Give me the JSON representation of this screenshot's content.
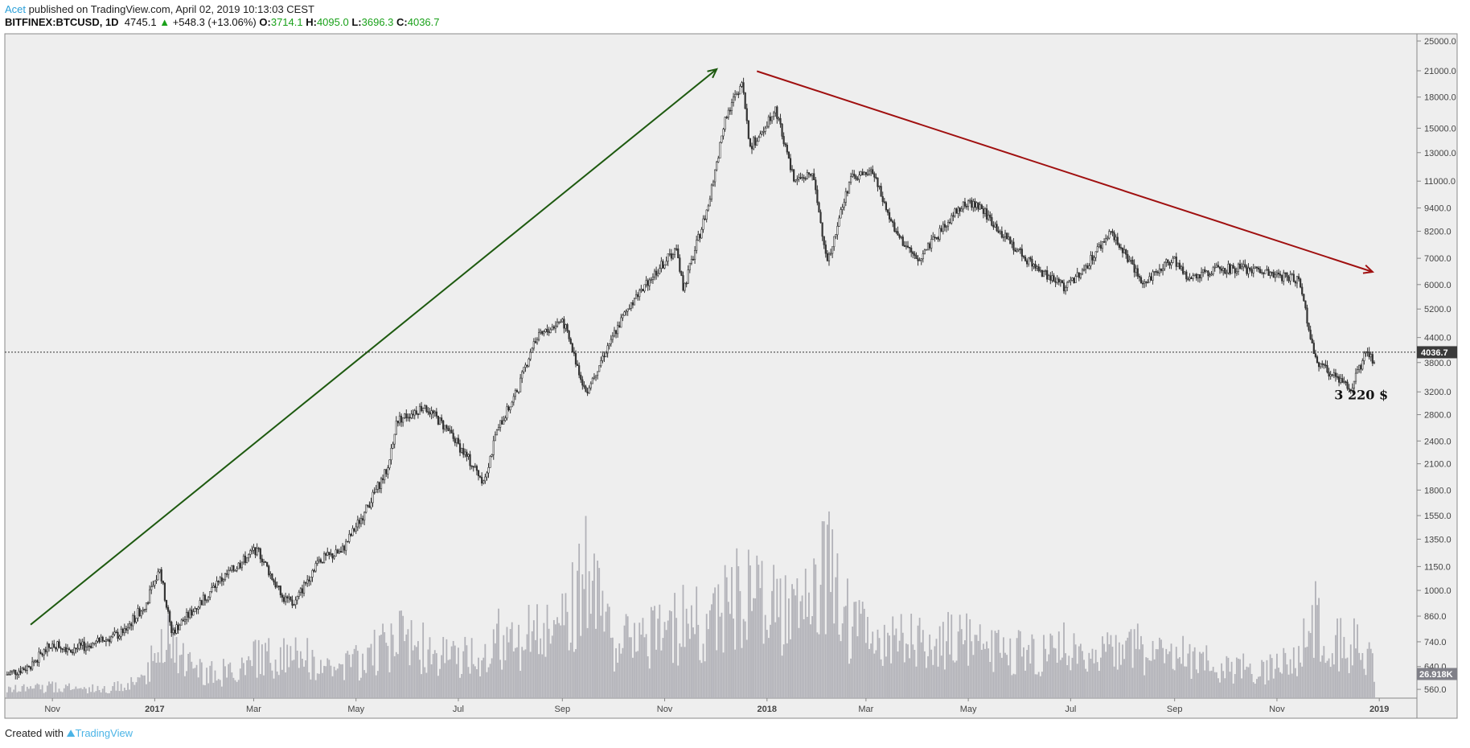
{
  "header": {
    "author": "Acet",
    "published": "published on TradingView.com, April 02, 2019 10:13:03 CEST",
    "symbol": "BITFINEX:BTCUSD, 1D",
    "last": "4745.1",
    "change": "+548.3 (+13.06%)",
    "o_label": "O:",
    "o": "3714.1",
    "h_label": "H:",
    "h": "4095.0",
    "l_label": "L:",
    "l": "3696.3",
    "c_label": "C:",
    "c": "4036.7"
  },
  "footer": {
    "created_with": "Created with",
    "brand": "TradingView"
  },
  "chart_data": {
    "type": "candlestick",
    "scale": "log",
    "grid": false,
    "ylim": [
      540,
      26000
    ],
    "y_ticks": [
      25000,
      21000,
      18000,
      15000,
      13000,
      11000,
      9400,
      8200,
      7000,
      6000,
      5200,
      4400,
      3800,
      3200,
      2800,
      2400,
      2100,
      1800,
      1550,
      1350,
      1150,
      1000,
      860,
      740,
      640,
      560
    ],
    "x_ticks": [
      {
        "date": "2016-11-01",
        "label": "Nov"
      },
      {
        "date": "2017-01-01",
        "label": "2017"
      },
      {
        "date": "2017-03-01",
        "label": "Mar"
      },
      {
        "date": "2017-05-01",
        "label": "May"
      },
      {
        "date": "2017-07-01",
        "label": "Jul"
      },
      {
        "date": "2017-09-01",
        "label": "Sep"
      },
      {
        "date": "2017-11-01",
        "label": "Nov"
      },
      {
        "date": "2018-01-01",
        "label": "2018"
      },
      {
        "date": "2018-03-01",
        "label": "Mar"
      },
      {
        "date": "2018-05-01",
        "label": "May"
      },
      {
        "date": "2018-07-01",
        "label": "Jul"
      },
      {
        "date": "2018-09-01",
        "label": "Sep"
      },
      {
        "date": "2018-11-01",
        "label": "Nov"
      },
      {
        "date": "2019-01-01",
        "label": "2019"
      }
    ],
    "last_price_label": "4036.7",
    "last_price": 4036.7,
    "last_volume_label": "26.918K",
    "last_volume_k": 26.918,
    "price_path": [
      [
        "2016-10-04",
        610
      ],
      [
        "2016-10-18",
        640
      ],
      [
        "2016-11-01",
        730
      ],
      [
        "2016-11-15",
        710
      ],
      [
        "2016-11-29",
        740
      ],
      [
        "2016-12-13",
        780
      ],
      [
        "2016-12-27",
        930
      ],
      [
        "2017-01-04",
        1130
      ],
      [
        "2017-01-11",
        780
      ],
      [
        "2017-01-25",
        900
      ],
      [
        "2017-02-08",
        1050
      ],
      [
        "2017-02-22",
        1180
      ],
      [
        "2017-03-03",
        1280
      ],
      [
        "2017-03-18",
        960
      ],
      [
        "2017-03-25",
        920
      ],
      [
        "2017-04-08",
        1190
      ],
      [
        "2017-04-22",
        1250
      ],
      [
        "2017-05-06",
        1580
      ],
      [
        "2017-05-20",
        2050
      ],
      [
        "2017-05-25",
        2700
      ],
      [
        "2017-06-11",
        2950
      ],
      [
        "2017-06-25",
        2550
      ],
      [
        "2017-07-16",
        1900
      ],
      [
        "2017-07-25",
        2600
      ],
      [
        "2017-08-05",
        3200
      ],
      [
        "2017-08-15",
        4300
      ],
      [
        "2017-09-01",
        4900
      ],
      [
        "2017-09-15",
        3200
      ],
      [
        "2017-09-30",
        4350
      ],
      [
        "2017-10-12",
        5400
      ],
      [
        "2017-10-20",
        6000
      ],
      [
        "2017-11-08",
        7400
      ],
      [
        "2017-11-12",
        5800
      ],
      [
        "2017-11-28",
        9900
      ],
      [
        "2017-12-07",
        16000
      ],
      [
        "2017-12-17",
        19600
      ],
      [
        "2017-12-22",
        13500
      ],
      [
        "2017-12-28",
        14500
      ],
      [
        "2018-01-06",
        17000
      ],
      [
        "2018-01-17",
        11000
      ],
      [
        "2018-01-28",
        11500
      ],
      [
        "2018-02-06",
        6900
      ],
      [
        "2018-02-20",
        11300
      ],
      [
        "2018-03-05",
        11500
      ],
      [
        "2018-03-18",
        8200
      ],
      [
        "2018-04-01",
        6900
      ],
      [
        "2018-04-12",
        7900
      ],
      [
        "2018-04-25",
        9400
      ],
      [
        "2018-05-06",
        9700
      ],
      [
        "2018-05-20",
        8200
      ],
      [
        "2018-06-12",
        6500
      ],
      [
        "2018-06-28",
        5900
      ],
      [
        "2018-07-10",
        6700
      ],
      [
        "2018-07-25",
        8200
      ],
      [
        "2018-08-10",
        6300
      ],
      [
        "2018-08-14",
        6100
      ],
      [
        "2018-08-31",
        7000
      ],
      [
        "2018-09-08",
        6200
      ],
      [
        "2018-09-20",
        6500
      ],
      [
        "2018-10-10",
        6600
      ],
      [
        "2018-10-31",
        6350
      ],
      [
        "2018-11-14",
        6200
      ],
      [
        "2018-11-20",
        4600
      ],
      [
        "2018-11-25",
        3800
      ],
      [
        "2018-12-06",
        3500
      ],
      [
        "2018-12-15",
        3220
      ],
      [
        "2018-12-24",
        4050
      ],
      [
        "2018-12-29",
        3800
      ]
    ],
    "volume_k": [
      8,
      10,
      12,
      10,
      9,
      12,
      25,
      70,
      55,
      30,
      25,
      30,
      40,
      45,
      50,
      35,
      30,
      40,
      55,
      60,
      50,
      40,
      45,
      60,
      55,
      70,
      75,
      120,
      60,
      55,
      60,
      70,
      80,
      75,
      90,
      110,
      120,
      90,
      100,
      85,
      90,
      130,
      70,
      60,
      60,
      55,
      55,
      60,
      55,
      45,
      45,
      50,
      40,
      45,
      50,
      50,
      45,
      40,
      35,
      30,
      30,
      40,
      70,
      80,
      60,
      55,
      45,
      27
    ],
    "drawings": [
      {
        "type": "arrow",
        "color": "#1e5a10",
        "from": [
          "2016-10-19",
          818
        ],
        "to": [
          "2017-12-02",
          21200
        ]
      },
      {
        "type": "arrow",
        "color": "#a01010",
        "from": [
          "2017-12-26",
          20950
        ],
        "to": [
          "2018-12-28",
          6465
        ]
      }
    ],
    "annotation": {
      "text": "3 220 $",
      "date": "2018-12-10",
      "price": 3060
    },
    "colors": {
      "background": "#eeeeee",
      "candle": "#333333",
      "volume": "#b2b2b8",
      "axis": "#888888"
    }
  }
}
